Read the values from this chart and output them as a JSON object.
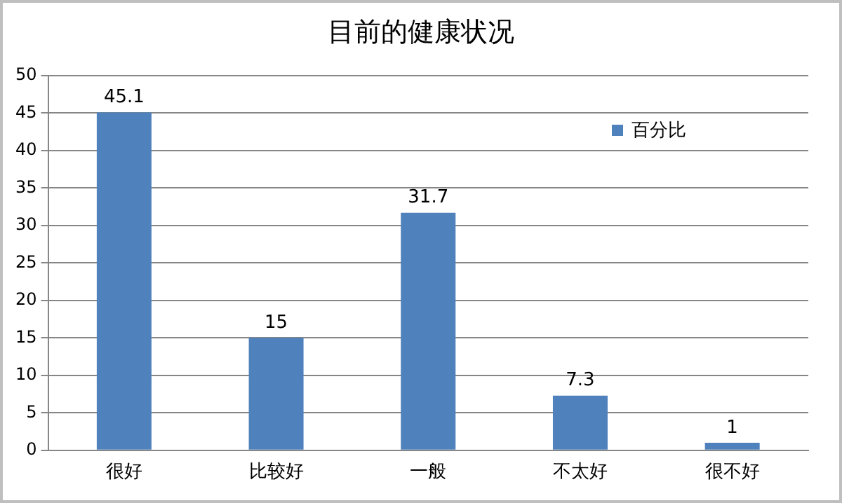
{
  "chart_data": {
    "type": "bar",
    "title": "目前的健康状况",
    "categories": [
      "很好",
      "比较好",
      "一般",
      "不太好",
      "很不好"
    ],
    "series": [
      {
        "name": "百分比",
        "color": "#4f81bd",
        "values": [
          45.1,
          15,
          31.7,
          7.3,
          1
        ]
      }
    ],
    "ylim": [
      0,
      50
    ],
    "yticks": [
      0,
      5,
      10,
      15,
      20,
      25,
      30,
      35,
      40,
      45,
      50
    ],
    "grid": "y",
    "legend": "top right",
    "data_labels": true
  }
}
